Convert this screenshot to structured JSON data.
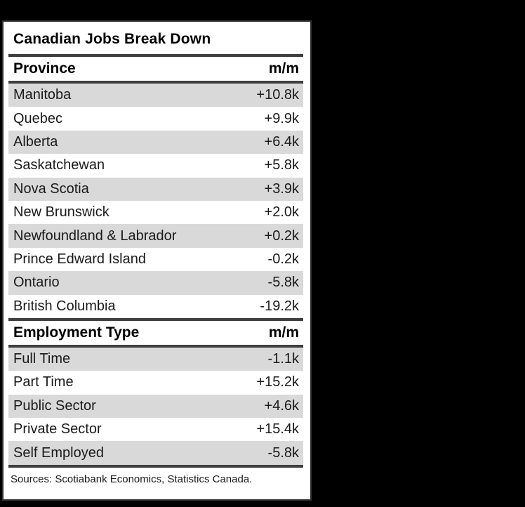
{
  "title": "Canadian Jobs Break Down",
  "sections": [
    {
      "header": {
        "label": "Province",
        "value": "m/m"
      },
      "rows": [
        {
          "label": "Manitoba",
          "value": "+10.8k",
          "value_k": 10.8
        },
        {
          "label": "Quebec",
          "value": "+9.9k",
          "value_k": 9.9
        },
        {
          "label": "Alberta",
          "value": "+6.4k",
          "value_k": 6.4
        },
        {
          "label": "Saskatchewan",
          "value": "+5.8k",
          "value_k": 5.8
        },
        {
          "label": "Nova Scotia",
          "value": "+3.9k",
          "value_k": 3.9
        },
        {
          "label": "New Brunswick",
          "value": "+2.0k",
          "value_k": 2.0
        },
        {
          "label": "Newfoundland & Labrador",
          "value": "+0.2k",
          "value_k": 0.2
        },
        {
          "label": "Prince Edward Island",
          "value": "-0.2k",
          "value_k": -0.2
        },
        {
          "label": "Ontario",
          "value": "-5.8k",
          "value_k": -5.8
        },
        {
          "label": "British Columbia",
          "value": "-19.2k",
          "value_k": -19.2
        }
      ]
    },
    {
      "header": {
        "label": "Employment Type",
        "value": "m/m"
      },
      "rows": [
        {
          "label": "Full Time",
          "value": "-1.1k",
          "value_k": -1.1
        },
        {
          "label": "Part Time",
          "value": "+15.2k",
          "value_k": 15.2
        },
        {
          "label": "Public Sector",
          "value": "+4.6k",
          "value_k": 4.6
        },
        {
          "label": "Private Sector",
          "value": "+15.4k",
          "value_k": 15.4
        },
        {
          "label": "Self Employed",
          "value": "-5.8k",
          "value_k": -5.8
        }
      ]
    }
  ],
  "source_note": "Sources: Scotiabank Economics, Statistics Canada.",
  "colors": {
    "background": "#000000",
    "panel": "#ffffff",
    "row_alt": "#d9d9d9",
    "rule": "#3f3f3f",
    "text": "#1a1a1a"
  },
  "chart_data": {
    "type": "table",
    "title": "Canadian Jobs Break Down",
    "tables": [
      {
        "columns": [
          "Province",
          "m/m"
        ],
        "rows": [
          [
            "Manitoba",
            "+10.8k"
          ],
          [
            "Quebec",
            "+9.9k"
          ],
          [
            "Alberta",
            "+6.4k"
          ],
          [
            "Saskatchewan",
            "+5.8k"
          ],
          [
            "Nova Scotia",
            "+3.9k"
          ],
          [
            "New Brunswick",
            "+2.0k"
          ],
          [
            "Newfoundland & Labrador",
            "+0.2k"
          ],
          [
            "Prince Edward Island",
            "-0.2k"
          ],
          [
            "Ontario",
            "-5.8k"
          ],
          [
            "British Columbia",
            "-19.2k"
          ]
        ]
      },
      {
        "columns": [
          "Employment Type",
          "m/m"
        ],
        "rows": [
          [
            "Full Time",
            "-1.1k"
          ],
          [
            "Part Time",
            "+15.2k"
          ],
          [
            "Public Sector",
            "+4.6k"
          ],
          [
            "Private Sector",
            "+15.4k"
          ],
          [
            "Self Employed",
            "-5.8k"
          ]
        ]
      }
    ],
    "source": "Sources: Scotiabank Economics, Statistics Canada."
  }
}
